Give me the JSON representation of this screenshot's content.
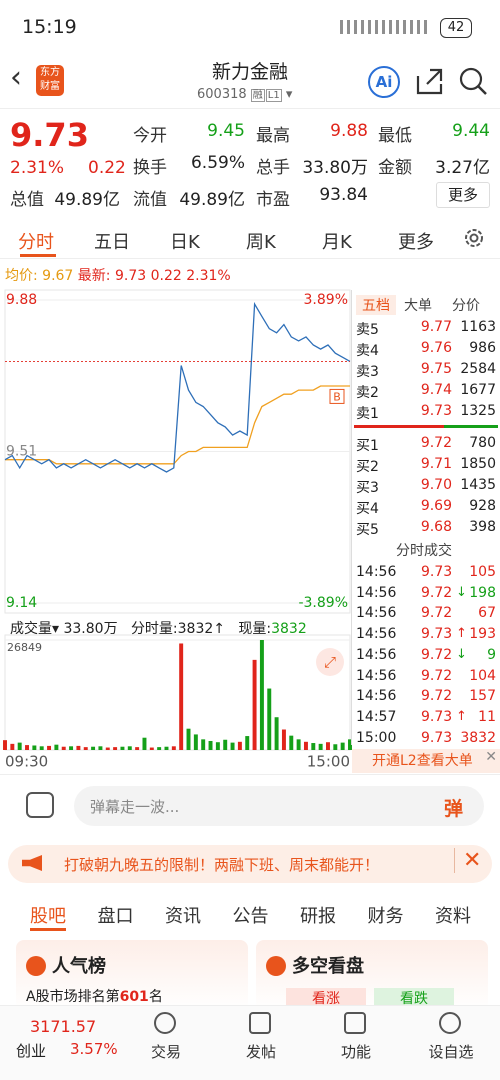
{
  "status": {
    "time": "15:19",
    "battery": "42"
  },
  "header": {
    "title": "新力金融",
    "code": "600318",
    "tags": [
      "融",
      "L1"
    ],
    "logo": [
      "东方",
      "财富"
    ]
  },
  "quote": {
    "price": "9.73",
    "change_pct": "2.31%",
    "change": "0.22",
    "fields": [
      {
        "label": "今开",
        "value": "9.45"
      },
      {
        "label": "最高",
        "value": "9.88"
      },
      {
        "label": "最低",
        "value": "9.44"
      },
      {
        "label": "换手",
        "value": "6.59%"
      },
      {
        "label": "总手",
        "value": "33.80万"
      },
      {
        "label": "金额",
        "value": "3.27亿"
      },
      {
        "label": "总值",
        "value": "49.89亿"
      },
      {
        "label": "流值",
        "value": "49.89亿"
      },
      {
        "label": "市盈",
        "value": "93.84"
      }
    ],
    "more": "更多"
  },
  "tabs": [
    "分时",
    "五日",
    "日K",
    "周K",
    "月K",
    "更多"
  ],
  "legend": {
    "avg_label": "均价:",
    "avg": "9.67",
    "latest_label": "最新:",
    "latest": "9.73",
    "change": "0.22",
    "pct": "2.31%"
  },
  "chart_data": [
    {
      "type": "line",
      "ylim": [
        9.14,
        9.88
      ],
      "yticks": [
        9.14,
        9.51,
        9.88
      ],
      "y2lim": [
        -3.89,
        3.89
      ],
      "y2ticks": [
        {
          "value": -3.89,
          "label": "-3.89%"
        },
        {
          "value": 3.89,
          "label": "3.89%"
        }
      ],
      "series": [
        {
          "color": "#2e6fb8",
          "values": [
            9.49,
            9.5,
            9.47,
            9.5,
            9.49,
            9.48,
            9.49,
            9.47,
            9.48,
            9.47,
            9.48,
            9.49,
            9.48,
            9.47,
            9.48,
            9.49,
            9.48,
            9.47,
            9.48,
            9.47,
            9.48,
            9.47,
            9.46,
            9.47,
            9.72,
            9.66,
            9.63,
            9.62,
            9.6,
            9.58,
            9.57,
            9.55,
            9.56,
            9.55,
            9.87,
            9.84,
            9.81,
            9.8,
            9.82,
            9.79,
            9.78,
            9.79,
            9.77,
            9.76,
            9.77,
            9.75,
            9.74,
            9.73
          ]
        },
        {
          "color": "#f0a020",
          "values": [
            9.49,
            9.49,
            9.49,
            9.49,
            9.49,
            9.49,
            9.49,
            9.48,
            9.48,
            9.48,
            9.48,
            9.48,
            9.48,
            9.48,
            9.48,
            9.48,
            9.48,
            9.48,
            9.48,
            9.48,
            9.48,
            9.48,
            9.48,
            9.48,
            9.5,
            9.51,
            9.51,
            9.52,
            9.52,
            9.52,
            9.52,
            9.52,
            9.52,
            9.52,
            9.58,
            9.62,
            9.63,
            9.64,
            9.65,
            9.65,
            9.66,
            9.66,
            9.66,
            9.67,
            9.67,
            9.67,
            9.67,
            9.67
          ]
        }
      ]
    },
    {
      "type": "bar",
      "ylim": [
        0,
        26849
      ],
      "yticks": [
        26849
      ],
      "xlim": [
        0,
        47
      ],
      "xticks": [
        {
          "value": 0,
          "label": "09:30"
        },
        {
          "value": 47,
          "label": "15:00"
        }
      ],
      "values": [
        2400,
        1500,
        1800,
        1200,
        1100,
        900,
        1000,
        1300,
        800,
        900,
        1000,
        700,
        800,
        900,
        600,
        700,
        800,
        900,
        700,
        3000,
        600,
        700,
        800,
        900,
        26000,
        5200,
        3800,
        2600,
        2200,
        1900,
        2500,
        1800,
        2000,
        3400,
        22000,
        26849,
        15000,
        8000,
        5000,
        3500,
        2600,
        2000,
        1700,
        1500,
        1900,
        1400,
        1800,
        2600
      ]
    }
  ],
  "volume_legend": {
    "label": "成交量",
    "total": "33.80万",
    "tick": "分时量:3832↑",
    "current_label": "现量:",
    "current": "3832"
  },
  "order_book": {
    "tabs": [
      "五档",
      "大单",
      "分价"
    ],
    "asks": [
      {
        "label": "卖5",
        "price": "9.77",
        "volume": "1163"
      },
      {
        "label": "卖4",
        "price": "9.76",
        "volume": "986"
      },
      {
        "label": "卖3",
        "price": "9.75",
        "volume": "2584"
      },
      {
        "label": "卖2",
        "price": "9.74",
        "volume": "1677"
      },
      {
        "label": "卖1",
        "price": "9.73",
        "volume": "1325"
      }
    ],
    "bids": [
      {
        "label": "买1",
        "price": "9.72",
        "volume": "780"
      },
      {
        "label": "买2",
        "price": "9.71",
        "volume": "1850"
      },
      {
        "label": "买3",
        "price": "9.70",
        "volume": "1435"
      },
      {
        "label": "买4",
        "price": "9.69",
        "volume": "928"
      },
      {
        "label": "买5",
        "price": "9.68",
        "volume": "398"
      }
    ],
    "trades_title": "分时成交",
    "trades": [
      {
        "time": "14:56",
        "price": "9.73",
        "arrow": "",
        "volume": "105"
      },
      {
        "time": "14:56",
        "price": "9.72",
        "arrow": "↓",
        "volume": "198"
      },
      {
        "time": "14:56",
        "price": "9.72",
        "arrow": "",
        "volume": "67"
      },
      {
        "time": "14:56",
        "price": "9.73",
        "arrow": "↑",
        "volume": "193"
      },
      {
        "time": "14:56",
        "price": "9.72",
        "arrow": "↓",
        "volume": "9"
      },
      {
        "time": "14:56",
        "price": "9.72",
        "arrow": "",
        "volume": "104"
      },
      {
        "time": "14:56",
        "price": "9.72",
        "arrow": "",
        "volume": "157"
      },
      {
        "time": "14:57",
        "price": "9.73",
        "arrow": "↑",
        "volume": "11"
      },
      {
        "time": "15:00",
        "price": "9.73",
        "arrow": "",
        "volume": "3832"
      }
    ],
    "l2": "开通L2查看大单"
  },
  "input": {
    "placeholder": "弹幕走一波...",
    "button": "弹"
  },
  "promo": "打破朝九晚五的限制！两融下班、周末都能开！",
  "sub_tabs": [
    "股吧",
    "盘口",
    "资讯",
    "公告",
    "研报",
    "财务",
    "资料"
  ],
  "cards": {
    "popular": {
      "title": "人气榜",
      "text": "A股市场排名第",
      "rank": "601",
      "suffix": "名"
    },
    "sentiment": {
      "title": "多空看盘",
      "up": "看涨",
      "down": "看跌"
    }
  },
  "bottom": {
    "index": "3171.57",
    "index_name": "创业",
    "index_pct": "3.57%",
    "items": [
      "交易",
      "发帖",
      "功能",
      "设自选"
    ]
  }
}
